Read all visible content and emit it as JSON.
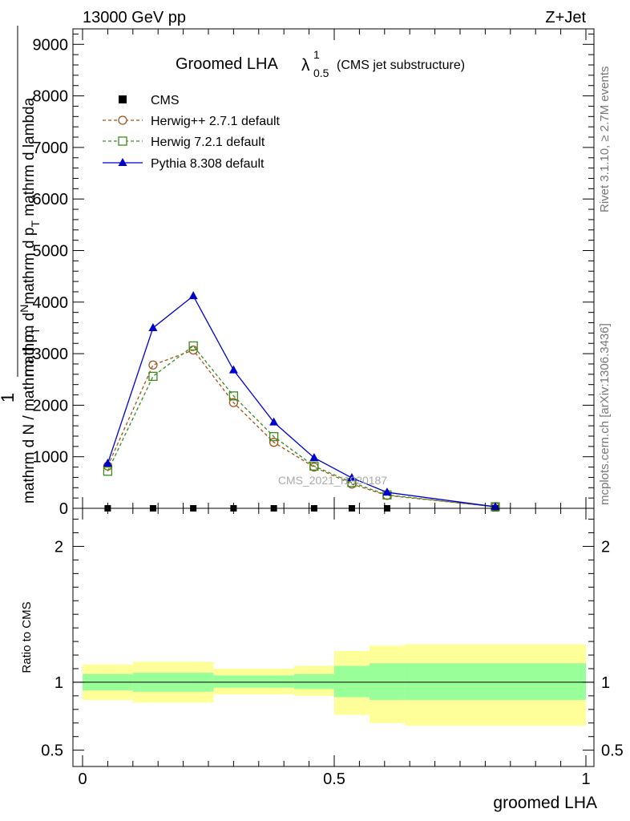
{
  "header": {
    "left": "13000 GeV pp",
    "right": "Z+Jet"
  },
  "side_labels": {
    "rivet": "Rivet 3.1.10, ≥ 2.7M events",
    "mcplots": "mcplots.cern.ch [arXiv:1306.3436]"
  },
  "watermark": "CMS_2021_I1920187",
  "chart_data": [
    {
      "type": "line",
      "title": "Groomed LHA",
      "title_symbol": "λ",
      "title_sup": "1",
      "title_sub": "0.5",
      "subtitle": "(CMS jet substructure)",
      "ylabel": {
        "one": "1",
        "upper": "mathrm d",
        "upper_N": "N",
        "upper_frac": "mathrm d p",
        "upper_T": "T",
        "upper_rest": " mathrm d lambda",
        "lower": "mathrm d N",
        "lower_frac": " / mathrm d p",
        "lower_T": "T"
      },
      "xlim": [
        0,
        1
      ],
      "ylim": [
        0,
        9300
      ],
      "yticks": [
        {
          "v": 0,
          "label": "0"
        },
        {
          "v": 1000,
          "label": "1000"
        },
        {
          "v": 2000,
          "label": "2000"
        },
        {
          "v": 3000,
          "label": "3000"
        },
        {
          "v": 4000,
          "label": "4000"
        },
        {
          "v": 5000,
          "label": "5000"
        },
        {
          "v": 6000,
          "label": "6000"
        },
        {
          "v": 7000,
          "label": "7000"
        },
        {
          "v": 8000,
          "label": "8000"
        },
        {
          "v": 9000,
          "label": "9000"
        }
      ],
      "legend_position": "top-left",
      "series": [
        {
          "name": "CMS",
          "style": "data",
          "color": "#000000",
          "x": [
            0.05,
            0.14,
            0.22,
            0.3,
            0.38,
            0.46,
            0.535,
            0.605,
            0.82
          ],
          "y": [
            0,
            0,
            0,
            0,
            0,
            0,
            0,
            0,
            0
          ]
        },
        {
          "name": "Herwig++ 2.7.1 default",
          "style": "circle-dashed",
          "color": "#a0521a",
          "x": [
            0.05,
            0.14,
            0.22,
            0.3,
            0.38,
            0.46,
            0.535,
            0.605,
            0.82
          ],
          "y": [
            820,
            2780,
            3070,
            2050,
            1280,
            800,
            470,
            250,
            30
          ]
        },
        {
          "name": "Herwig 7.2.1 default",
          "style": "square-dashed",
          "color": "#3a8a1c",
          "x": [
            0.05,
            0.14,
            0.22,
            0.3,
            0.38,
            0.46,
            0.535,
            0.605,
            0.82
          ],
          "y": [
            720,
            2560,
            3150,
            2180,
            1390,
            820,
            500,
            260,
            30
          ]
        },
        {
          "name": "Pythia 8.308 default",
          "style": "triangle-solid",
          "color": "#0000cc",
          "x": [
            0.05,
            0.14,
            0.22,
            0.3,
            0.38,
            0.46,
            0.535,
            0.605,
            0.82
          ],
          "y": [
            870,
            3500,
            4120,
            2680,
            1670,
            980,
            590,
            310,
            30
          ]
        }
      ]
    },
    {
      "type": "area",
      "ylabel": "Ratio to CMS",
      "xlabel": "groomed LHA",
      "xlim": [
        0,
        1
      ],
      "ylim": [
        0.38,
        2.28
      ],
      "yticks": [
        {
          "v": 0.5,
          "label": "0.5"
        },
        {
          "v": 1,
          "label": "1"
        },
        {
          "v": 2,
          "label": "2"
        }
      ],
      "xticks": [
        {
          "v": 0,
          "label": "0"
        },
        {
          "v": 0.5,
          "label": "0.5"
        },
        {
          "v": 1,
          "label": "1"
        }
      ],
      "reference_line": 1,
      "band_colors": {
        "stat": "#99ff99",
        "total": "#ffff99"
      },
      "bins": [
        {
          "lo": 0.0,
          "hi": 0.1,
          "stat_lo": 0.94,
          "stat_hi": 1.06,
          "tot_lo": 0.87,
          "tot_hi": 1.13
        },
        {
          "lo": 0.1,
          "hi": 0.26,
          "stat_lo": 0.93,
          "stat_hi": 1.07,
          "tot_lo": 0.85,
          "tot_hi": 1.15
        },
        {
          "lo": 0.26,
          "hi": 0.42,
          "stat_lo": 0.96,
          "stat_hi": 1.05,
          "tot_lo": 0.91,
          "tot_hi": 1.1
        },
        {
          "lo": 0.42,
          "hi": 0.5,
          "stat_lo": 0.95,
          "stat_hi": 1.06,
          "tot_lo": 0.9,
          "tot_hi": 1.12
        },
        {
          "lo": 0.5,
          "hi": 0.57,
          "stat_lo": 0.89,
          "stat_hi": 1.12,
          "tot_lo": 0.76,
          "tot_hi": 1.23
        },
        {
          "lo": 0.57,
          "hi": 0.64,
          "stat_lo": 0.87,
          "stat_hi": 1.14,
          "tot_lo": 0.7,
          "tot_hi": 1.27
        },
        {
          "lo": 0.64,
          "hi": 1.0,
          "stat_lo": 0.87,
          "stat_hi": 1.14,
          "tot_lo": 0.68,
          "tot_hi": 1.28
        }
      ]
    }
  ]
}
